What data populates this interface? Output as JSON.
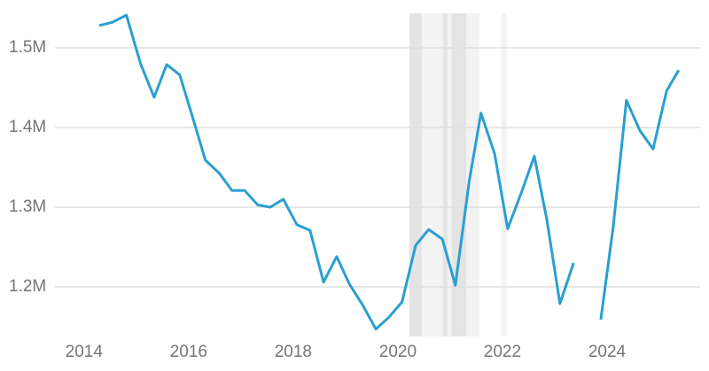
{
  "chart_data": {
    "type": "line",
    "x": [
      2014.29,
      2014.54,
      2014.81,
      2015.08,
      2015.34,
      2015.58,
      2015.83,
      2016.08,
      2016.32,
      2016.58,
      2016.83,
      2017.07,
      2017.32,
      2017.56,
      2017.81,
      2018.07,
      2018.32,
      2018.58,
      2018.83,
      2019.07,
      2019.32,
      2019.58,
      2019.83,
      2020.08,
      2020.34,
      2020.59,
      2020.85,
      2021.1,
      2021.36,
      2021.59,
      2021.85,
      2022.1,
      2022.36,
      2022.61,
      2022.85,
      2023.1,
      2023.36,
      2023.62,
      2023.88,
      2024.12,
      2024.37,
      2024.63,
      2024.88,
      2025.14,
      2025.37
    ],
    "values": [
      1528000,
      1532000,
      1541000,
      1480000,
      1438000,
      1479000,
      1466000,
      1412000,
      1359000,
      1343000,
      1321000,
      1321000,
      1303000,
      1300000,
      1310000,
      1278000,
      1271000,
      1206000,
      1238000,
      1204000,
      1178000,
      1147000,
      1162000,
      1181000,
      1252000,
      1272000,
      1260000,
      1202000,
      1331000,
      1418000,
      1367000,
      1273000,
      1318000,
      1364000,
      1284000,
      1179000,
      1230000,
      null,
      1159000,
      1276000,
      1434000,
      1396000,
      1373000,
      1446000,
      1472000
    ],
    "color": "#2a9fd0",
    "bands": [
      {
        "from": 2020.22,
        "to": 2020.46,
        "color": "#e4e4e4"
      },
      {
        "from": 2020.46,
        "to": 2020.86,
        "color": "#f3f3f3"
      },
      {
        "from": 2020.86,
        "to": 2020.95,
        "color": "#e4e4e4"
      },
      {
        "from": 2020.95,
        "to": 2021.03,
        "color": "#f3f3f3"
      },
      {
        "from": 2021.03,
        "to": 2021.31,
        "color": "#e4e4e4"
      },
      {
        "from": 2021.31,
        "to": 2021.56,
        "color": "#f3f3f3"
      },
      {
        "from": 2021.98,
        "to": 2022.08,
        "color": "#f3f3f3"
      }
    ],
    "xlim": [
      2013.41,
      2025.78
    ],
    "xticks": [
      2014,
      2016,
      2018,
      2020,
      2022,
      2024
    ],
    "ylim": [
      1137800,
      1543300
    ],
    "yticks": [
      {
        "value": 1200000,
        "label": "1.2M"
      },
      {
        "value": 1300000,
        "label": "1.3M"
      },
      {
        "value": 1400000,
        "label": "1.4M"
      },
      {
        "value": 1500000,
        "label": "1.5M"
      }
    ],
    "grid": true
  }
}
